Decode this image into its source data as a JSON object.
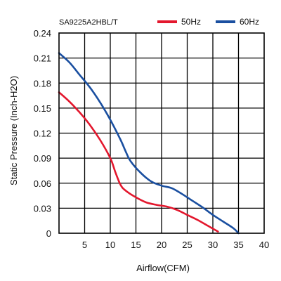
{
  "chart_data": {
    "type": "line",
    "title": "SA9225A2HBL/T",
    "xlabel": "Airflow(CFM)",
    "ylabel": "Static Pressure (Inch-H2O)",
    "xlim": [
      0,
      40
    ],
    "ylim": [
      0,
      0.24
    ],
    "x_ticks": [
      5,
      10,
      15,
      20,
      25,
      30,
      35,
      40
    ],
    "y_ticks": [
      0,
      0.03,
      0.06,
      0.09,
      0.12,
      0.15,
      0.18,
      0.21,
      0.24
    ],
    "x_tick_labels": [
      "5",
      "10",
      "15",
      "20",
      "25",
      "30",
      "35",
      "40"
    ],
    "y_tick_labels": [
      "0",
      "0.03",
      "0.06",
      "0.09",
      "0.12",
      "0.15",
      "0.18",
      "0.21",
      "0.24"
    ],
    "grid": true,
    "legend_position": "top-right",
    "series": [
      {
        "name": "50Hz",
        "color": "#e3172d",
        "points": [
          [
            0,
            0.169
          ],
          [
            2,
            0.158
          ],
          [
            4,
            0.145
          ],
          [
            6,
            0.13
          ],
          [
            8,
            0.112
          ],
          [
            10,
            0.09
          ],
          [
            11,
            0.073
          ],
          [
            12,
            0.058
          ],
          [
            13,
            0.051
          ],
          [
            15,
            0.043
          ],
          [
            17,
            0.037
          ],
          [
            19,
            0.034
          ],
          [
            21,
            0.032
          ],
          [
            23,
            0.028
          ],
          [
            25,
            0.022
          ],
          [
            27,
            0.016
          ],
          [
            29,
            0.009
          ],
          [
            31,
            0.002
          ]
        ]
      },
      {
        "name": "60Hz",
        "color": "#1a4fa0",
        "points": [
          [
            0,
            0.216
          ],
          [
            2,
            0.205
          ],
          [
            4,
            0.19
          ],
          [
            6,
            0.175
          ],
          [
            8,
            0.157
          ],
          [
            10,
            0.136
          ],
          [
            12,
            0.112
          ],
          [
            13,
            0.098
          ],
          [
            14,
            0.086
          ],
          [
            16,
            0.072
          ],
          [
            18,
            0.062
          ],
          [
            20,
            0.057
          ],
          [
            22,
            0.054
          ],
          [
            24,
            0.047
          ],
          [
            26,
            0.039
          ],
          [
            28,
            0.031
          ],
          [
            30,
            0.022
          ],
          [
            32,
            0.014
          ],
          [
            34,
            0.006
          ],
          [
            35,
            0.0
          ]
        ]
      }
    ]
  }
}
